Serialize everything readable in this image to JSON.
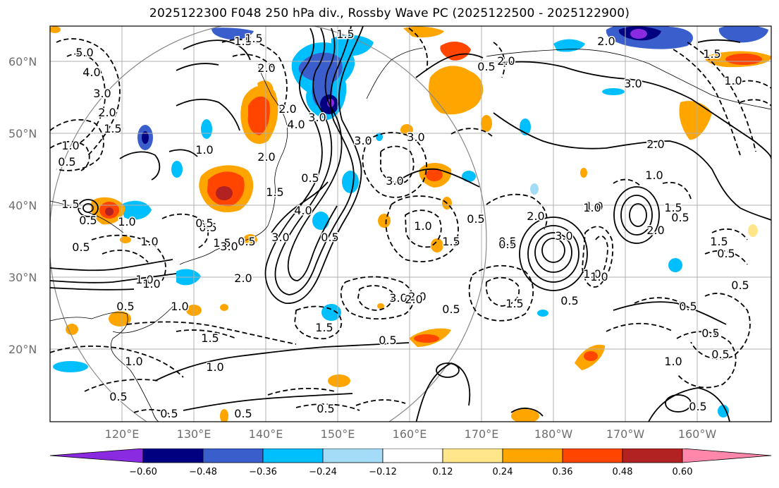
{
  "title": "2025122300 F048 250 hPa div., Rossby Wave PC (2025122500 - 2025122900)",
  "lat_labels": [
    "60°N",
    "50°N",
    "40°N",
    "30°N",
    "20°N"
  ],
  "lon_labels": [
    "120°E",
    "130°E",
    "140°E",
    "150°E",
    "160°E",
    "170°E",
    "180°W",
    "170°W",
    "160°W"
  ],
  "colorbar": {
    "tick_labels": [
      "−0.60",
      "−0.48",
      "−0.36",
      "−0.24",
      "−0.12",
      "0.12",
      "0.24",
      "0.36",
      "0.48",
      "0.60"
    ],
    "colors": [
      "#8a2be2",
      "#000080",
      "#3a5fcd",
      "#00bfff",
      "#a4dcf7",
      "#ffffff",
      "#ffe68a",
      "#ffa500",
      "#ff4500",
      "#b22222",
      "#ff88aa"
    ]
  },
  "contour_labels": [
    "1.5",
    "1.5",
    "5.0",
    "4.0",
    "3.0",
    "2.0",
    "1.5",
    "1.0",
    "0.5",
    "2.0",
    "2.0",
    "4.0",
    "3.0",
    "1.5",
    "1.0",
    "3.0",
    "3.0",
    "2.0",
    "2.0",
    "1.0",
    "3.0",
    "1.0",
    "2.0",
    "1.0",
    "0.5",
    "1.5",
    "1.0",
    "0.5",
    "0.5",
    "1.5",
    "2.0",
    "3.0",
    "0.5",
    "1.0",
    "1.5",
    "2.0",
    "1.0",
    "0.5",
    "1.5",
    "0.5",
    "3.0",
    "4.0",
    "3.0",
    "0.5",
    "0.5",
    "0.5",
    "1.5",
    "0.5",
    "1.0",
    "1.5",
    "3.0",
    "2.0",
    "1.5",
    "0.5",
    "0.5",
    "0.5",
    "1.0",
    "0.5",
    "1.5",
    "1.0",
    "0.5",
    "0.5",
    "0.5",
    "1.0",
    "0.5",
    "1.5",
    "0.5",
    "0.5",
    "0.5",
    "1.0",
    "0.5",
    "2.0",
    "1.0",
    "3.0",
    "2.0",
    "1.5",
    "1.0",
    "0.5",
    "1.0",
    "2.0",
    "1.5",
    "0.5",
    "0.5",
    "0.5",
    "1.0"
  ]
}
